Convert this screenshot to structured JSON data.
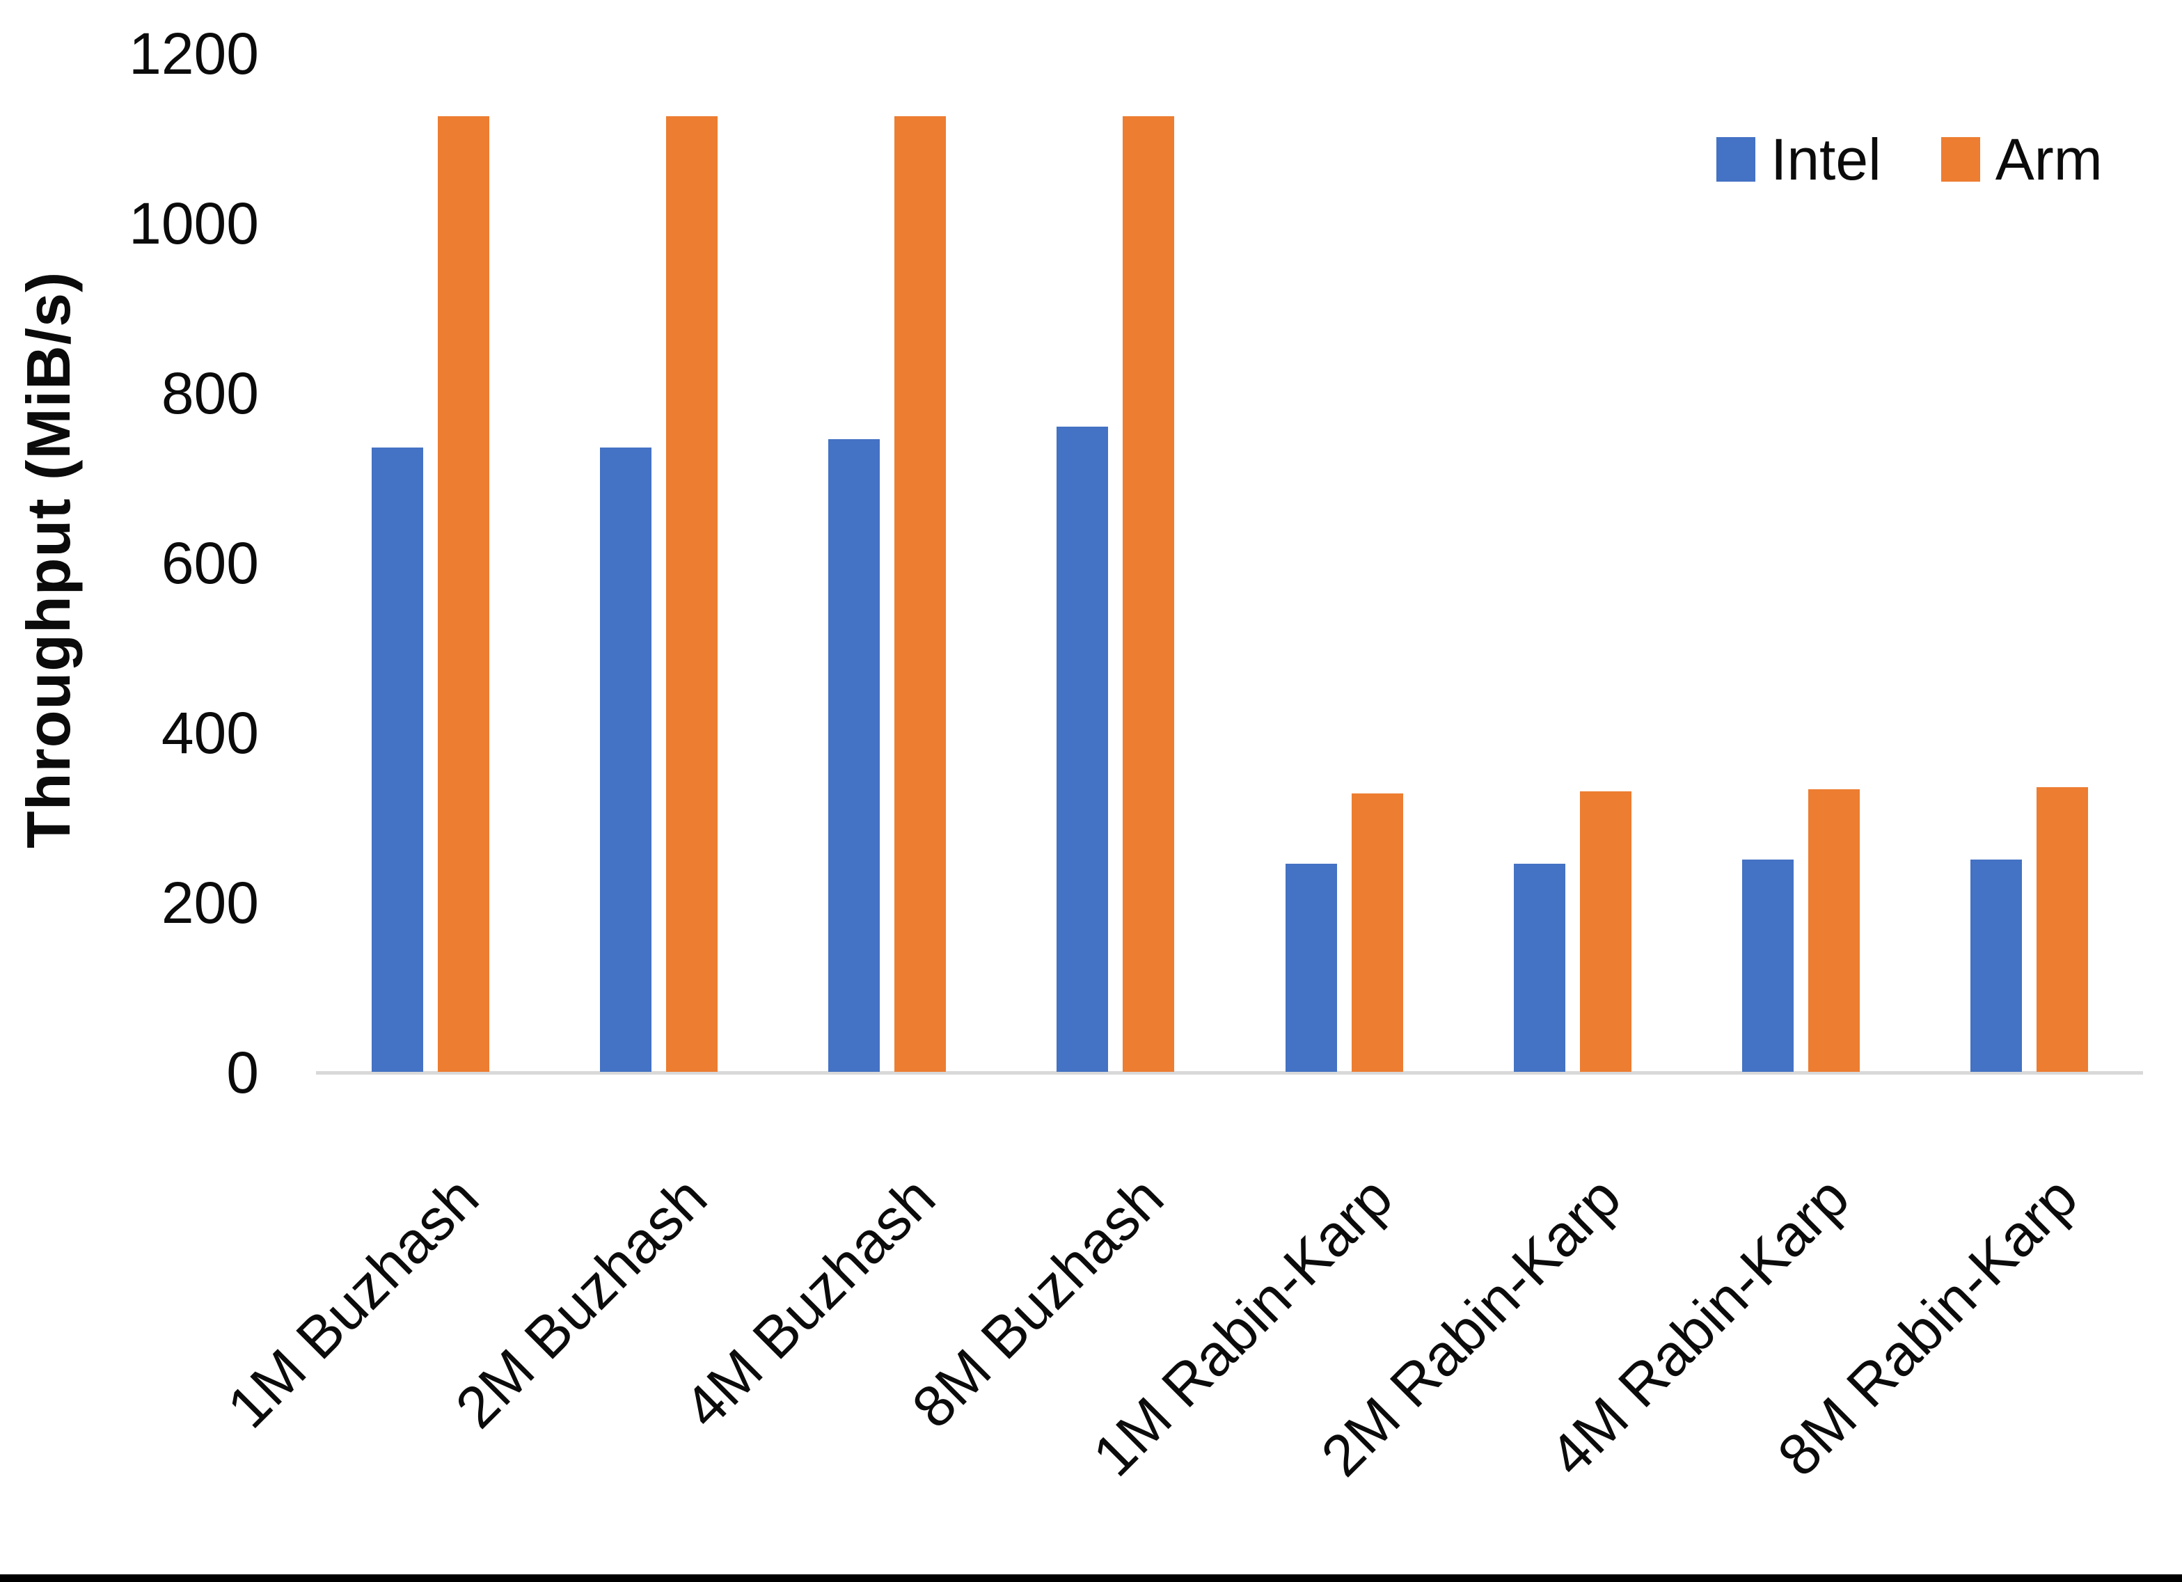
{
  "chart_data": {
    "type": "bar",
    "title": "",
    "categories": [
      "1M Buzhash",
      "2M Buzhash",
      "4M Buzhash",
      "8M Buzhash",
      "1M Rabin-Karp",
      "2M Rabin-Karp",
      "4M Rabin-Karp",
      "8M Rabin-Karp"
    ],
    "series": [
      {
        "name": "Intel",
        "color": "#4472C4",
        "values": [
          735,
          735,
          745,
          760,
          245,
          245,
          250,
          250
        ]
      },
      {
        "name": "Arm",
        "color": "#ED7D31",
        "values": [
          1125,
          1125,
          1125,
          1125,
          328,
          330,
          333,
          335
        ]
      }
    ],
    "xlabel": "",
    "ylabel": "Throughput (MiB/s)",
    "ylim": [
      0,
      1200
    ],
    "yticks": [
      0,
      200,
      400,
      600,
      800,
      1000,
      1200
    ],
    "grid": false,
    "legend_position": "top-right"
  },
  "colors": {
    "background": "#FFFFFF",
    "axis_line": "#D9D9D9",
    "text": "#0B0B0B",
    "bottom_border": "#000000"
  }
}
